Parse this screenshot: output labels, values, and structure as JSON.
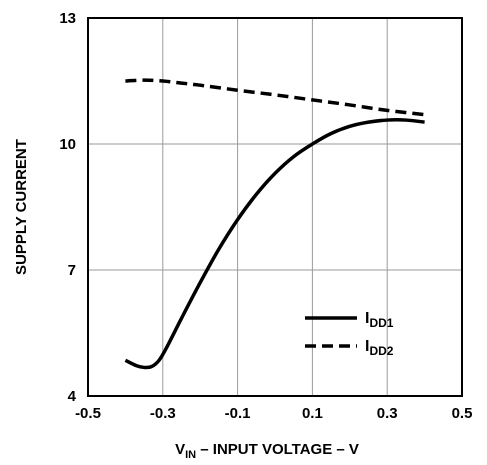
{
  "chart_data": {
    "type": "line",
    "title": "",
    "xlabel": {
      "main": "V",
      "sub": "IN",
      "rest": " – INPUT VOLTAGE – V"
    },
    "ylabel": "SUPPLY CURRENT",
    "xlim": [
      -0.5,
      0.5
    ],
    "ylim": [
      4,
      13
    ],
    "x_ticks": [
      "-0.5",
      "-0.3",
      "-0.1",
      "0.1",
      "0.3",
      "0.5"
    ],
    "x_tick_values": [
      -0.5,
      -0.3,
      -0.1,
      0.1,
      0.3,
      0.5
    ],
    "y_ticks": [
      "4",
      "7",
      "10",
      "13"
    ],
    "y_tick_values": [
      4,
      7,
      10,
      13
    ],
    "grid": true,
    "legend_position": "bottom-right",
    "series": [
      {
        "name": "IDD1",
        "name_main": "I",
        "name_sub": "DD1",
        "style": "solid",
        "color": "#000000",
        "x": [
          -0.4,
          -0.37,
          -0.35,
          -0.33,
          -0.31,
          -0.29,
          -0.25,
          -0.2,
          -0.15,
          -0.1,
          -0.05,
          0.0,
          0.05,
          0.1,
          0.15,
          0.2,
          0.25,
          0.3,
          0.35,
          0.4
        ],
        "y": [
          4.85,
          4.72,
          4.68,
          4.7,
          4.85,
          5.15,
          5.85,
          6.7,
          7.5,
          8.2,
          8.8,
          9.3,
          9.7,
          10.0,
          10.25,
          10.42,
          10.52,
          10.57,
          10.57,
          10.52
        ]
      },
      {
        "name": "IDD2",
        "name_main": "I",
        "name_sub": "DD2",
        "style": "dashed",
        "color": "#000000",
        "x": [
          -0.4,
          -0.35,
          -0.3,
          -0.25,
          -0.2,
          -0.1,
          0.0,
          0.1,
          0.2,
          0.3,
          0.4
        ],
        "y": [
          11.5,
          11.52,
          11.5,
          11.45,
          11.4,
          11.28,
          11.17,
          11.05,
          10.93,
          10.8,
          10.7
        ]
      }
    ]
  }
}
